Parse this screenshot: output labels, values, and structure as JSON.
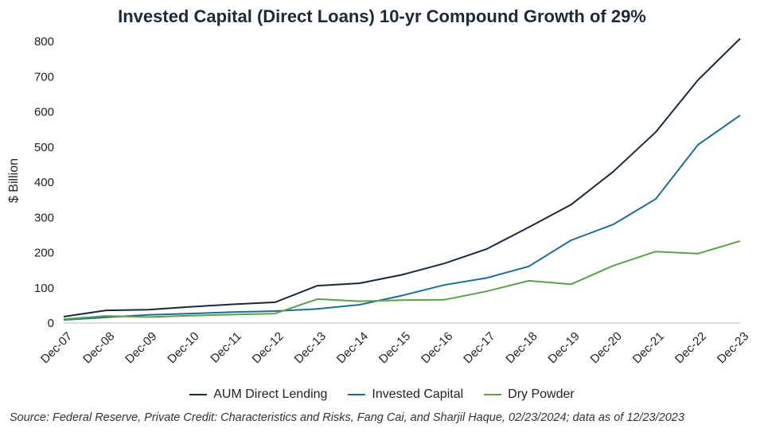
{
  "chart_data": {
    "type": "line",
    "title": "Invested Capital (Direct Loans) 10-yr Compound Growth of 29%",
    "ylabel": "$ Billion",
    "xlabel": "",
    "ylim": [
      0,
      800
    ],
    "yticks": [
      0,
      100,
      200,
      300,
      400,
      500,
      600,
      700,
      800
    ],
    "grid": false,
    "legend_position": "bottom",
    "categories": [
      "Dec-07",
      "Dec-08",
      "Dec-09",
      "Dec-10",
      "Dec-11",
      "Dec-12",
      "Dec-13",
      "Dec-14",
      "Dec-15",
      "Dec-16",
      "Dec-17",
      "Dec-18",
      "Dec-19",
      "Dec-20",
      "Dec-21",
      "Dec-22",
      "Dec-23"
    ],
    "series": [
      {
        "name": "AUM Direct Lending",
        "color": "#152a3e",
        "values": [
          18,
          36,
          38,
          46,
          53,
          59,
          106,
          113,
          137,
          169,
          210,
          272,
          336,
          430,
          542,
          690,
          808
        ]
      },
      {
        "name": "Invested Capital",
        "color": "#1b6f92",
        "values": [
          9,
          16,
          23,
          27,
          31,
          34,
          40,
          52,
          78,
          108,
          128,
          161,
          235,
          280,
          352,
          506,
          590
        ]
      },
      {
        "name": "Dry Powder",
        "color": "#5f9e4b",
        "values": [
          11,
          20,
          17,
          21,
          24,
          27,
          68,
          62,
          65,
          66,
          90,
          120,
          110,
          163,
          203,
          197,
          233
        ]
      }
    ]
  },
  "source": "Source: Federal Reserve, Private Credit: Characteristics and Risks, Fang Cai, and Sharjil Haque, 02/23/2024; data as of 12/23/2023"
}
